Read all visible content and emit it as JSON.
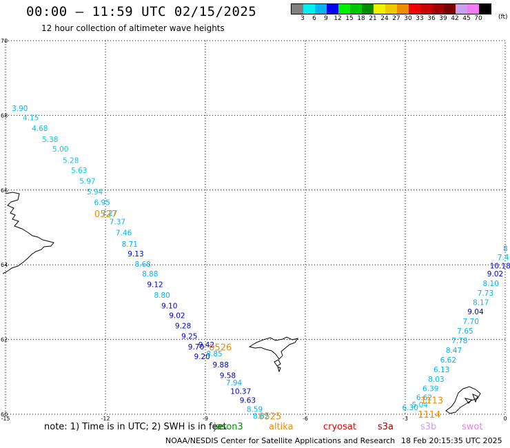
{
  "header": {
    "title": "00:00 – 11:59 UTC 02/15/2025",
    "subtitle": "12 hour collection of altimeter wave heights"
  },
  "legend": {
    "unit": "(ft)",
    "colors": [
      "#808080",
      "#00f0f0",
      "#00b4f0",
      "#0000f0",
      "#00f000",
      "#00c800",
      "#008c00",
      "#f0f000",
      "#f0c800",
      "#f08c00",
      "#f00000",
      "#c80000",
      "#a00000",
      "#780000",
      "#c8a0f0",
      "#f07cf0",
      "#000000"
    ],
    "labels": [
      "3",
      "6",
      "9",
      "12",
      "15",
      "18",
      "21",
      "24",
      "27",
      "30",
      "33",
      "36",
      "39",
      "42",
      "45",
      "70"
    ]
  },
  "axes": {
    "x_ticks": [
      "-15",
      "-12",
      "-9",
      "-6",
      "-3",
      "0"
    ],
    "y_ticks": [
      "70",
      "68",
      "66",
      "64",
      "62",
      "60"
    ]
  },
  "tracks": [
    {
      "pass": "0527",
      "points": [
        {
          "lon": -14.57,
          "lat": 68.19,
          "swh": "3.90",
          "color": "#00b4f0"
        },
        {
          "lon": -14.24,
          "lat": 67.94,
          "swh": "4.15",
          "color": "#00c8e6"
        },
        {
          "lon": -13.97,
          "lat": 67.66,
          "swh": "4.68",
          "color": "#00c8e6"
        },
        {
          "lon": -13.66,
          "lat": 67.36,
          "swh": "5.38",
          "color": "#00c8e6"
        },
        {
          "lon": -13.35,
          "lat": 67.1,
          "swh": "5.00",
          "color": "#00c8e6"
        },
        {
          "lon": -13.04,
          "lat": 66.8,
          "swh": "5.28",
          "color": "#00c8e6"
        },
        {
          "lon": -12.79,
          "lat": 66.53,
          "swh": "5.63",
          "color": "#00c8e6"
        },
        {
          "lon": -12.54,
          "lat": 66.25,
          "swh": "5.97",
          "color": "#00c8e6"
        },
        {
          "lon": -12.32,
          "lat": 65.96,
          "swh": "5.94",
          "color": "#00c8e6"
        },
        {
          "lon": -12.1,
          "lat": 65.67,
          "swh": "6.95",
          "color": "#00b4f0"
        },
        {
          "lon": -11.88,
          "lat": 65.39,
          "swh": "7.27",
          "color": "#00b4f0"
        },
        {
          "lon": -11.64,
          "lat": 65.16,
          "swh": "7.37",
          "color": "#00b4f0"
        },
        {
          "lon": -11.45,
          "lat": 64.86,
          "swh": "7.46",
          "color": "#00b4f0"
        },
        {
          "lon": -11.27,
          "lat": 64.56,
          "swh": "8.71",
          "color": "#00b4f0"
        },
        {
          "lon": -11.09,
          "lat": 64.3,
          "swh": "9.13",
          "color": "#0000c8"
        },
        {
          "lon": -10.88,
          "lat": 64.02,
          "swh": "8.68",
          "color": "#00b4f0"
        },
        {
          "lon": -10.66,
          "lat": 63.76,
          "swh": "8.88",
          "color": "#00b4f0"
        },
        {
          "lon": -10.51,
          "lat": 63.48,
          "swh": "9.12",
          "color": "#0000c8"
        },
        {
          "lon": -10.3,
          "lat": 63.19,
          "swh": "8.80",
          "color": "#00b4f0"
        },
        {
          "lon": -10.08,
          "lat": 62.91,
          "swh": "9.10",
          "color": "#0000c8"
        },
        {
          "lon": -9.85,
          "lat": 62.65,
          "swh": "9.02",
          "color": "#0000c8"
        },
        {
          "lon": -9.67,
          "lat": 62.37,
          "swh": "9.28",
          "color": "#0000c8"
        },
        {
          "lon": -9.48,
          "lat": 62.09,
          "swh": "9.25",
          "color": "#0000c8"
        },
        {
          "lon": -9.28,
          "lat": 61.81,
          "swh": "9.70",
          "color": "#0000c8"
        },
        {
          "lon": -9.1,
          "lat": 61.55,
          "swh": "9.20",
          "color": "#0000c8"
        }
      ]
    },
    {
      "pass": "0526",
      "points": [
        {
          "lon": -8.97,
          "lat": 61.86,
          "swh": "9.42",
          "color": "#0000c8"
        },
        {
          "lon": -8.73,
          "lat": 61.62,
          "swh": "8.85",
          "color": "#00b4f0"
        },
        {
          "lon": -8.54,
          "lat": 61.33,
          "swh": "9.88",
          "color": "#0000c8"
        },
        {
          "lon": -8.33,
          "lat": 61.04,
          "swh": "9.58",
          "color": "#0000c8"
        },
        {
          "lon": -8.14,
          "lat": 60.85,
          "swh": "7.94",
          "color": "#00b4f0"
        },
        {
          "lon": -7.94,
          "lat": 60.62,
          "swh": "10.37",
          "color": "#0000c8"
        },
        {
          "lon": -7.73,
          "lat": 60.38,
          "swh": "9.63",
          "color": "#0000c8"
        },
        {
          "lon": -7.52,
          "lat": 60.14,
          "swh": "8.59",
          "color": "#00b4f0"
        },
        {
          "lon": -7.33,
          "lat": 59.95,
          "swh": "8.62",
          "color": "#00b4f0"
        }
      ]
    },
    {
      "pass": "1113",
      "points": [
        {
          "lon": -2.85,
          "lat": 60.18,
          "swh": "6.30",
          "color": "#00b4f0"
        },
        {
          "lon": -2.56,
          "lat": 60.26,
          "swh": "5.04",
          "color": "#00c8e6"
        },
        {
          "lon": -2.43,
          "lat": 60.45,
          "swh": "6.62",
          "color": "#00b4f0"
        },
        {
          "lon": -2.24,
          "lat": 60.69,
          "swh": "6.39",
          "color": "#00b4f0"
        },
        {
          "lon": -2.07,
          "lat": 60.94,
          "swh": "8.03",
          "color": "#00b4f0"
        },
        {
          "lon": -1.91,
          "lat": 61.2,
          "swh": "6.13",
          "color": "#00b4f0"
        },
        {
          "lon": -1.71,
          "lat": 61.46,
          "swh": "6.62",
          "color": "#00b4f0"
        },
        {
          "lon": -1.54,
          "lat": 61.72,
          "swh": "8.47",
          "color": "#00b4f0"
        },
        {
          "lon": -1.37,
          "lat": 61.97,
          "swh": "7.78",
          "color": "#00b4f0"
        },
        {
          "lon": -1.2,
          "lat": 62.23,
          "swh": "7.65",
          "color": "#00b4f0"
        },
        {
          "lon": -1.03,
          "lat": 62.49,
          "swh": "7.70",
          "color": "#00b4f0"
        },
        {
          "lon": -0.89,
          "lat": 62.75,
          "swh": "9.04",
          "color": "#0000c8"
        },
        {
          "lon": -0.73,
          "lat": 63.0,
          "swh": "8.17",
          "color": "#00b4f0"
        },
        {
          "lon": -0.59,
          "lat": 63.25,
          "swh": "7.73",
          "color": "#00b4f0"
        },
        {
          "lon": -0.43,
          "lat": 63.51,
          "swh": "8.10",
          "color": "#00b4f0"
        },
        {
          "lon": -0.3,
          "lat": 63.76,
          "swh": "9.02",
          "color": "#0000c8"
        },
        {
          "lon": -0.15,
          "lat": 63.98,
          "swh": "10.18",
          "color": "#0000c8"
        },
        {
          "lon": -0.06,
          "lat": 64.21,
          "swh": "7.4",
          "color": "#00b4f0"
        },
        {
          "lon": 0.01,
          "lat": 64.44,
          "swh": "8",
          "color": "#00b4f0"
        }
      ]
    }
  ],
  "pass_labels": [
    {
      "text": "0527",
      "lon": -11.99,
      "lat": 65.37,
      "color": "#f08c00"
    },
    {
      "text": "0526",
      "lon": -8.55,
      "lat": 61.8,
      "color": "#f08c00"
    },
    {
      "text": "0525",
      "lon": -7.06,
      "lat": 59.95,
      "color": "#f08c00"
    },
    {
      "text": "1113",
      "lon": -2.2,
      "lat": 60.38,
      "color": "#780000"
    },
    {
      "text": "1114",
      "lon": -2.28,
      "lat": 60.0,
      "color": "#780000"
    }
  ],
  "footer": {
    "note": "note:  1) Time is in UTC; 2) SWH is in feet",
    "missions": [
      {
        "name": "jason3",
        "color": "#008c00"
      },
      {
        "name": "altika",
        "color": "#f08c00"
      },
      {
        "name": "cryosat",
        "color": "#f00000"
      },
      {
        "name": "s3a",
        "color": "#a00000"
      },
      {
        "name": "s3b",
        "color": "#c8a0f0"
      },
      {
        "name": "swot",
        "color": "#f07cf0"
      }
    ],
    "credit": "NOAA/NESDIS Center for Satellite Applications and Research",
    "timestamp": "18 Feb 20:15:35 UTC 2025"
  }
}
